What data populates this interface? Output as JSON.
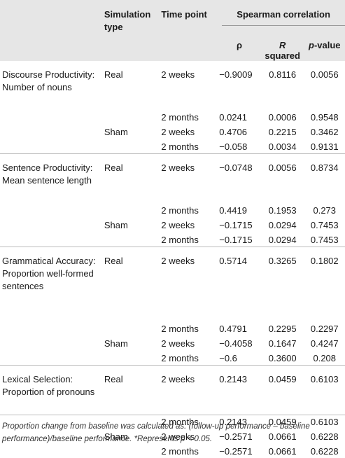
{
  "headers": {
    "col1": "",
    "col2": "Simulation type",
    "col3": "Time point",
    "group": "Spearman correlation",
    "rho": "ρ",
    "r2_italic": "R",
    "r2_rest": " squared",
    "p_italic": "p",
    "p_rest": "-value"
  },
  "sections": [
    {
      "measure_line1": "Discourse Productivity:",
      "measure_line2": "Number of nouns",
      "rows": [
        {
          "sim": "Real",
          "time": "2 weeks",
          "rho": "−0.9009",
          "r2": "0.8116",
          "p": "0.0056"
        },
        {
          "sim": "",
          "time": "2 months",
          "rho": "0.0241",
          "r2": "0.0006",
          "p": "0.9548"
        },
        {
          "sim": "Sham",
          "time": "2 weeks",
          "rho": "0.4706",
          "r2": "0.2215",
          "p": "0.3462"
        },
        {
          "sim": "",
          "time": "2 months",
          "rho": "−0.058",
          "r2": "0.0034",
          "p": "0.9131"
        }
      ]
    },
    {
      "measure_line1": "Sentence Productivity:",
      "measure_line2": "Mean sentence length",
      "rows": [
        {
          "sim": "Real",
          "time": "2 weeks",
          "rho": "−0.0748",
          "r2": "0.0056",
          "p": "0.8734"
        },
        {
          "sim": "",
          "time": "2 months",
          "rho": "0.4419",
          "r2": "0.1953",
          "p": "0.273"
        },
        {
          "sim": "Sham",
          "time": "2 weeks",
          "rho": "−0.1715",
          "r2": "0.0294",
          "p": "0.7453"
        },
        {
          "sim": "",
          "time": "2 months",
          "rho": "−0.1715",
          "r2": "0.0294",
          "p": "0.7453"
        }
      ]
    },
    {
      "measure_line1": "Grammatical Accuracy:",
      "measure_line2": "Proportion well-formed",
      "measure_line3": "sentences",
      "rows": [
        {
          "sim": "Real",
          "time": "2 weeks",
          "rho": "0.5714",
          "r2": "0.3265",
          "p": "0.1802"
        },
        {
          "sim": "",
          "time": "2 months",
          "rho": "0.4791",
          "r2": "0.2295",
          "p": "0.2297"
        },
        {
          "sim": "Sham",
          "time": "2 weeks",
          "rho": "−0.4058",
          "r2": "0.1647",
          "p": "0.4247"
        },
        {
          "sim": "",
          "time": "2 months",
          "rho": "−0.6",
          "r2": "0.3600",
          "p": "0.208"
        }
      ]
    },
    {
      "measure_line1": "Lexical Selection:",
      "measure_line2": "Proportion of pronouns",
      "rows": [
        {
          "sim": "Real",
          "time": "2 weeks",
          "rho": "0.2143",
          "r2": "0.0459",
          "p": "0.6103"
        },
        {
          "sim": "",
          "time": "2 months",
          "rho": "0.2143",
          "r2": "0.0459",
          "p": "0.6103"
        },
        {
          "sim": "Sham",
          "time": "2 weeks",
          "rho": "−0.2571",
          "r2": "0.0661",
          "p": "0.6228"
        },
        {
          "sim": "",
          "time": "2 months",
          "rho": "−0.2571",
          "r2": "0.0661",
          "p": "0.6228"
        }
      ]
    }
  ],
  "footnote_line1": "Proportion change from baseline was calculated as: (follow-up performance – baseline",
  "footnote_line2": "performance)/baseline performance. *Represents p < 0.05."
}
